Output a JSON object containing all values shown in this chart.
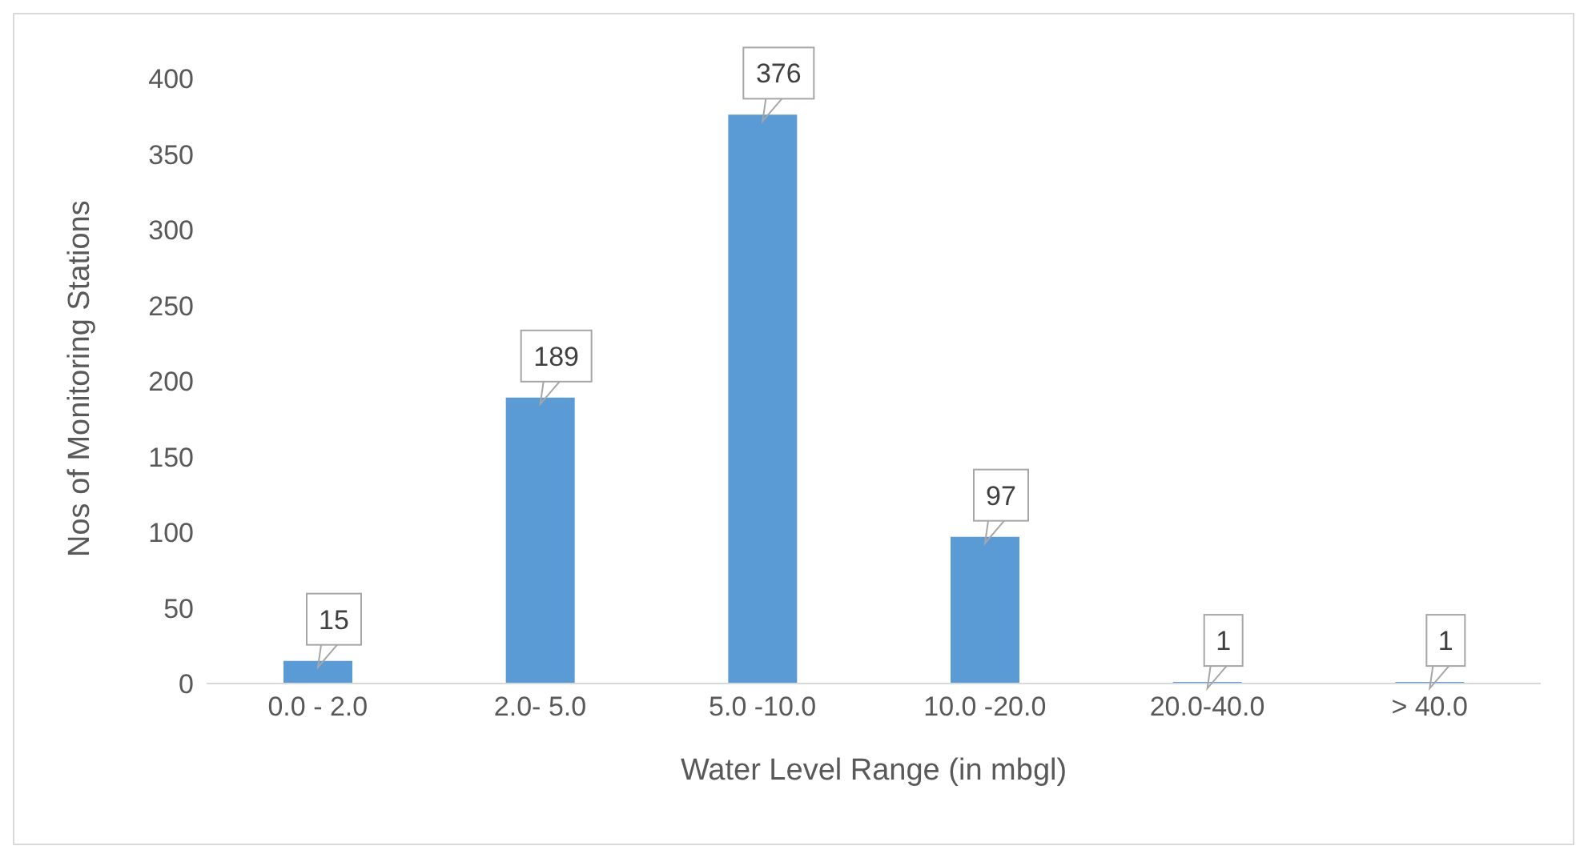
{
  "chart_data": {
    "type": "bar",
    "xlabel": "Water Level Range (in mbgl)",
    "ylabel": "Nos of Monitoring Stations",
    "categories": [
      "0.0 - 2.0",
      "2.0- 5.0",
      "5.0 -10.0",
      "10.0 -20.0",
      "20.0-40.0",
      "> 40.0"
    ],
    "values": [
      15,
      189,
      376,
      97,
      1,
      1
    ],
    "color": "#5b9bd5",
    "ylim": [
      0,
      400
    ],
    "yticks": [
      0,
      50,
      100,
      150,
      200,
      250,
      300,
      350,
      400
    ],
    "data_labels": true
  }
}
